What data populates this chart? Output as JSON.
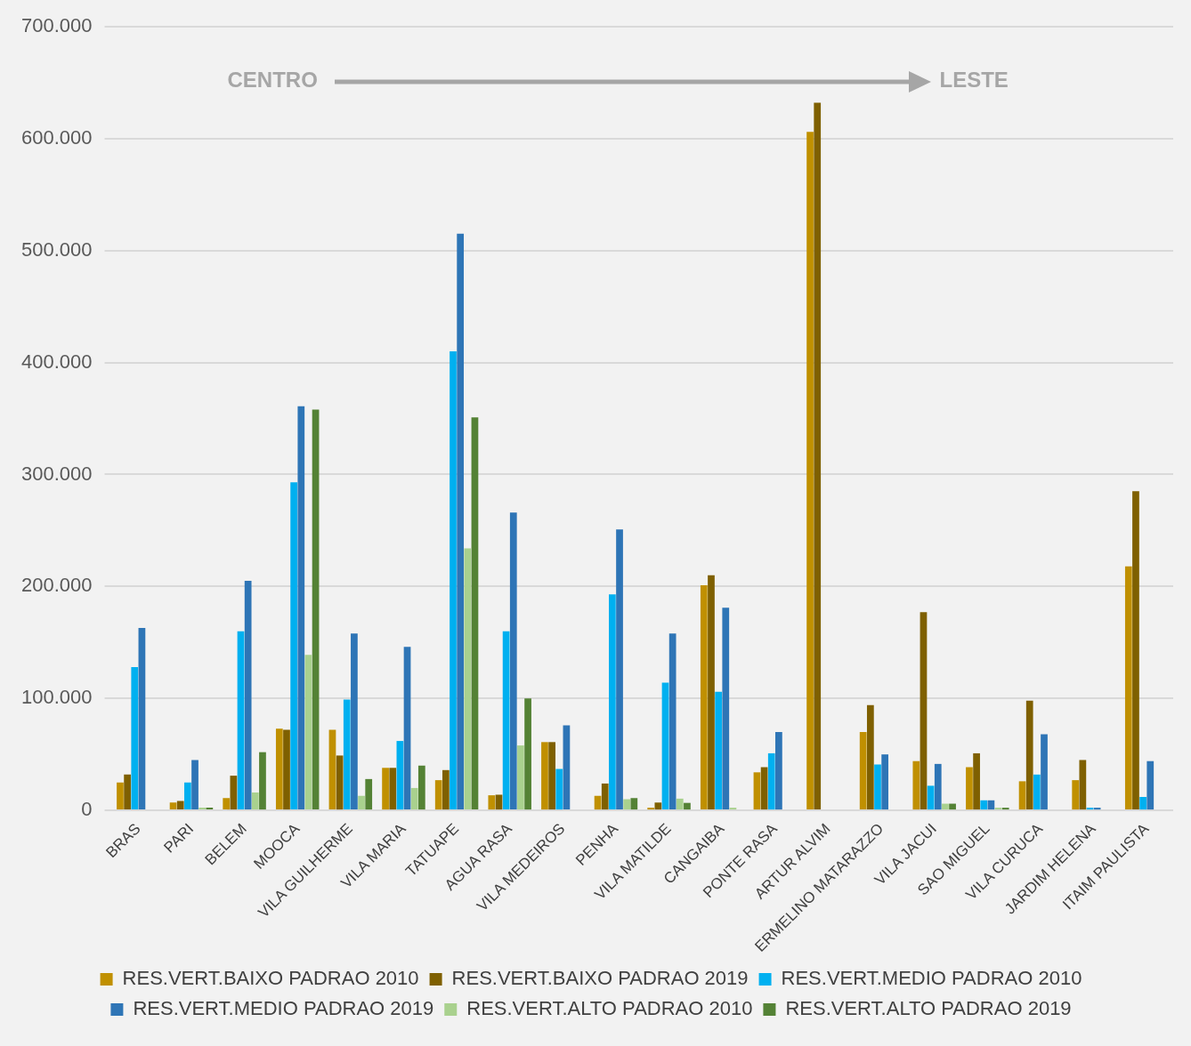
{
  "chart_data": {
    "type": "bar",
    "categories": [
      "BRAS",
      "PARI",
      "BELEM",
      "MOOCA",
      "VILA GUILHERME",
      "VILA MARIA",
      "TATUAPE",
      "AGUA RASA",
      "VILA MEDEIROS",
      "PENHA",
      "VILA MATILDE",
      "CANGAIBA",
      "PONTE RASA",
      "ARTUR ALVIM",
      "ERMELINO MATARAZZO",
      "VILA JACUI",
      "SAO MIGUEL",
      "VILA CURUCA",
      "JARDIM HELENA",
      "ITAIM PAULISTA"
    ],
    "series": [
      {
        "name": "RES.VERT.BAIXO PADRAO 2010",
        "color": "#c09000",
        "values": [
          25000,
          7000,
          11000,
          73000,
          72000,
          38000,
          27000,
          13500,
          61000,
          13000,
          600,
          201000,
          34000,
          606000,
          70000,
          44000,
          38600,
          26000,
          27000,
          218000
        ]
      },
      {
        "name": "RES.VERT.BAIXO PADRAO 2019",
        "color": "#7f6000",
        "values": [
          32000,
          8500,
          31000,
          72000,
          49000,
          38000,
          36000,
          14000,
          61000,
          24000,
          7000,
          210000,
          38600,
          632000,
          94000,
          177000,
          51000,
          98000,
          45000,
          285000
        ]
      },
      {
        "name": "RES.VERT.MEDIO PADRAO 2010",
        "color": "#00b0f0",
        "values": [
          128000,
          25000,
          160000,
          293000,
          99000,
          62000,
          410000,
          160000,
          37000,
          193000,
          114000,
          106000,
          51000,
          null,
          41000,
          22000,
          9000,
          32000,
          1500,
          12000
        ]
      },
      {
        "name": "RES.VERT.MEDIO PADRAO 2019",
        "color": "#2e75b6",
        "values": [
          163000,
          45000,
          205000,
          361000,
          158000,
          146000,
          515000,
          266000,
          76000,
          251000,
          158000,
          181000,
          70000,
          null,
          50000,
          41500,
          9000,
          68000,
          1500,
          44000
        ]
      },
      {
        "name": "RES.VERT.ALTO PADRAO 2010",
        "color": "#a9d18e",
        "values": [
          null,
          1000,
          16000,
          139000,
          13000,
          20000,
          234000,
          58000,
          null,
          10000,
          10500,
          500,
          null,
          null,
          null,
          6000,
          2000,
          null,
          null,
          null
        ]
      },
      {
        "name": "RES.VERT.ALTO PADRAO 2019",
        "color": "#548235",
        "values": [
          null,
          1000,
          52000,
          358000,
          28000,
          40000,
          351000,
          100000,
          null,
          11000,
          6700,
          null,
          null,
          null,
          null,
          6000,
          2000,
          null,
          null,
          null
        ]
      }
    ],
    "ylim": [
      0,
      700000
    ],
    "yticks": [
      {
        "value": 0,
        "label": "0"
      },
      {
        "value": 100000,
        "label": "100.000"
      },
      {
        "value": 200000,
        "label": "200.000"
      },
      {
        "value": 300000,
        "label": "300.000"
      },
      {
        "value": 400000,
        "label": "400.000"
      },
      {
        "value": 500000,
        "label": "500.000"
      },
      {
        "value": 600000,
        "label": "600.000"
      },
      {
        "value": 700000,
        "label": "700.000"
      }
    ],
    "grid": "y",
    "legend": "bottom",
    "annotations": [
      "CENTRO",
      "LESTE"
    ]
  }
}
